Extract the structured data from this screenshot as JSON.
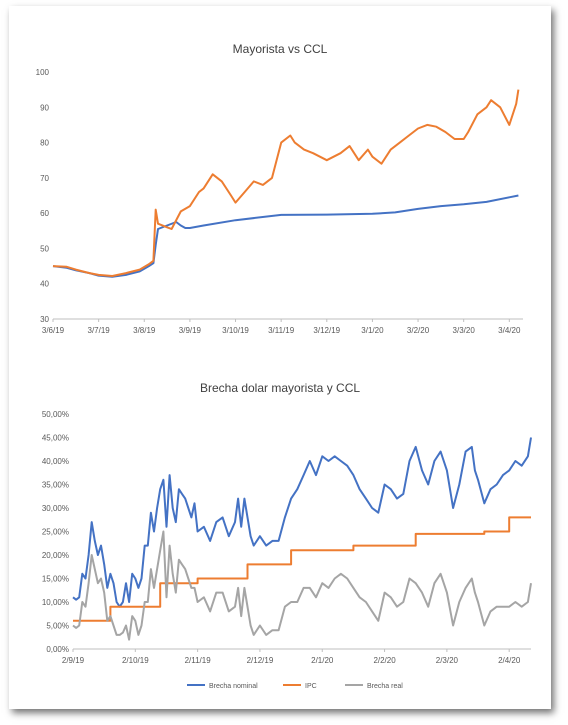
{
  "charts": {
    "top": {
      "title": "Mayorista vs CCL",
      "ytick_labels": [
        "100",
        "90",
        "80",
        "70",
        "60",
        "50",
        "40",
        "30"
      ],
      "xtick_labels": [
        "3/6/19",
        "3/7/19",
        "3/8/19",
        "3/9/19",
        "3/10/19",
        "3/11/19",
        "3/12/19",
        "3/1/20",
        "3/2/20",
        "3/3/20",
        "3/4/20"
      ]
    },
    "bottom": {
      "title": "Brecha dolar mayorista y CCL",
      "ytick_labels": [
        "50,00%",
        "45,00%",
        "40,00%",
        "35,00%",
        "30,00%",
        "25,00%",
        "20,00%",
        "15,00%",
        "10,00%",
        "5,00%",
        "0,00%"
      ],
      "xtick_labels": [
        "2/9/19",
        "2/10/19",
        "2/11/19",
        "2/12/19",
        "2/1/20",
        "2/2/20",
        "2/3/20",
        "2/4/20"
      ],
      "legend": [
        "Brecha nominal",
        "IPC",
        "Brecha real"
      ]
    }
  },
  "chart_data": [
    {
      "type": "line",
      "title": "Mayorista vs CCL",
      "xlabel": "",
      "ylabel": "",
      "ylim": [
        30,
        100
      ],
      "y_ticks": [
        30,
        40,
        50,
        60,
        70,
        80,
        90,
        100
      ],
      "x_tick_labels": [
        "3/6/19",
        "3/7/19",
        "3/8/19",
        "3/9/19",
        "3/10/19",
        "3/11/19",
        "3/12/19",
        "3/1/20",
        "3/2/20",
        "3/3/20",
        "3/4/20"
      ],
      "x_range_months": [
        0,
        10.3
      ],
      "grid": false,
      "series": [
        {
          "color": "#4472c4",
          "x": [
            0,
            0.3,
            0.5,
            0.8,
            1.0,
            1.3,
            1.6,
            1.9,
            2.1,
            2.2,
            2.25,
            2.3,
            2.5,
            2.7,
            2.8,
            2.9,
            3.0,
            3.3,
            4.0,
            5.0,
            6.0,
            7.0,
            7.5,
            8.0,
            8.5,
            9.0,
            9.5,
            10.0,
            10.2
          ],
          "values": [
            45,
            44.5,
            43.8,
            43,
            42.3,
            42,
            42.5,
            43.5,
            45,
            45.8,
            51,
            55.5,
            56.5,
            57.5,
            56.5,
            55.8,
            55.8,
            56.5,
            58,
            59.5,
            59.6,
            59.8,
            60.2,
            61.2,
            62,
            62.5,
            63.2,
            64.5,
            65
          ]
        },
        {
          "color": "#ed7d31",
          "x": [
            0,
            0.3,
            0.5,
            0.8,
            1.0,
            1.3,
            1.6,
            1.9,
            2.1,
            2.2,
            2.25,
            2.3,
            2.5,
            2.6,
            2.8,
            3.0,
            3.2,
            3.3,
            3.5,
            3.7,
            3.9,
            4.0,
            4.2,
            4.4,
            4.6,
            4.8,
            5.0,
            5.2,
            5.3,
            5.5,
            5.7,
            6.0,
            6.3,
            6.5,
            6.7,
            6.9,
            7.0,
            7.2,
            7.4,
            7.6,
            7.8,
            8.0,
            8.2,
            8.4,
            8.6,
            8.8,
            9.0,
            9.1,
            9.3,
            9.5,
            9.6,
            9.8,
            10.0,
            10.15,
            10.2
          ],
          "values": [
            45,
            44.8,
            44,
            43,
            42.5,
            42.2,
            43,
            44,
            45.5,
            46.5,
            61,
            57,
            56,
            55.5,
            60.5,
            62,
            66,
            67,
            71,
            69,
            65,
            63,
            66,
            69,
            68,
            70,
            80,
            82,
            80,
            78,
            77,
            75,
            77,
            79,
            75,
            78,
            76,
            74,
            78,
            80,
            82,
            84,
            85,
            84.5,
            83,
            81,
            81,
            83,
            88,
            90,
            92,
            90,
            85,
            91,
            95
          ]
        }
      ]
    },
    {
      "type": "line",
      "title": "Brecha dolar mayorista y CCL",
      "xlabel": "",
      "ylabel": "",
      "ylim": [
        0,
        50
      ],
      "y_ticks": [
        0,
        5,
        10,
        15,
        20,
        25,
        30,
        35,
        40,
        45,
        50
      ],
      "x_tick_labels": [
        "2/9/19",
        "2/10/19",
        "2/11/19",
        "2/12/19",
        "2/1/20",
        "2/2/20",
        "2/3/20",
        "2/4/20"
      ],
      "x_range_months": [
        0,
        7.35
      ],
      "grid": false,
      "legend_position": "bottom",
      "series": [
        {
          "name": "Brecha nominal",
          "color": "#4472c4",
          "x": [
            0,
            0.05,
            0.1,
            0.15,
            0.2,
            0.25,
            0.3,
            0.35,
            0.4,
            0.45,
            0.5,
            0.55,
            0.6,
            0.65,
            0.7,
            0.75,
            0.8,
            0.85,
            0.9,
            0.95,
            1.0,
            1.05,
            1.1,
            1.15,
            1.2,
            1.25,
            1.3,
            1.35,
            1.4,
            1.45,
            1.5,
            1.55,
            1.6,
            1.65,
            1.7,
            1.75,
            1.8,
            1.85,
            1.9,
            1.95,
            2.0,
            2.1,
            2.2,
            2.3,
            2.4,
            2.5,
            2.6,
            2.65,
            2.7,
            2.75,
            2.8,
            2.85,
            2.9,
            3.0,
            3.1,
            3.2,
            3.3,
            3.4,
            3.5,
            3.6,
            3.7,
            3.8,
            3.9,
            4.0,
            4.1,
            4.2,
            4.3,
            4.4,
            4.5,
            4.6,
            4.7,
            4.8,
            4.9,
            5.0,
            5.1,
            5.2,
            5.3,
            5.4,
            5.5,
            5.6,
            5.7,
            5.8,
            5.9,
            6.0,
            6.1,
            6.2,
            6.3,
            6.4,
            6.45,
            6.5,
            6.6,
            6.7,
            6.8,
            6.9,
            7.0,
            7.1,
            7.2,
            7.3,
            7.35
          ],
          "values": [
            11,
            10.5,
            11,
            16,
            15,
            20,
            27,
            23,
            20,
            22,
            18,
            13,
            16,
            14,
            10,
            9,
            10,
            14,
            10,
            16,
            15,
            13,
            15,
            22,
            22,
            29,
            25,
            30,
            34,
            36,
            26,
            37,
            30,
            27,
            34,
            33,
            32,
            30,
            28,
            31,
            25,
            26,
            23,
            27,
            28,
            24,
            27,
            32,
            26,
            32,
            28,
            24,
            22,
            24,
            22,
            23,
            23,
            28,
            32,
            34,
            37,
            40,
            37,
            41,
            40,
            41,
            40,
            39,
            37,
            34,
            32,
            30,
            29,
            35,
            34,
            32,
            33,
            40,
            43,
            38,
            35,
            40,
            42,
            38,
            30,
            35,
            42,
            43,
            38,
            36,
            31,
            34,
            35,
            37,
            38,
            40,
            39,
            41,
            45
          ]
        },
        {
          "name": "IPC",
          "color": "#ed7d31",
          "x": [
            0,
            0.6,
            0.6,
            1.4,
            1.4,
            2.0,
            2.0,
            2.8,
            2.8,
            3.5,
            3.5,
            4.5,
            4.5,
            5.5,
            5.5,
            6.6,
            6.6,
            7.0,
            7.0,
            7.35
          ],
          "values": [
            6,
            6,
            9,
            9,
            14,
            14,
            15,
            15,
            18,
            18,
            21,
            21,
            22,
            22,
            24.5,
            24.5,
            25,
            25,
            28,
            28
          ]
        },
        {
          "name": "Brecha real",
          "color": "#a5a5a5",
          "x": [
            0,
            0.05,
            0.1,
            0.15,
            0.2,
            0.25,
            0.3,
            0.35,
            0.4,
            0.45,
            0.5,
            0.55,
            0.6,
            0.65,
            0.7,
            0.75,
            0.8,
            0.85,
            0.9,
            0.95,
            1.0,
            1.05,
            1.1,
            1.15,
            1.2,
            1.25,
            1.3,
            1.35,
            1.4,
            1.45,
            1.5,
            1.55,
            1.6,
            1.65,
            1.7,
            1.75,
            1.8,
            1.85,
            1.9,
            1.95,
            2.0,
            2.1,
            2.2,
            2.3,
            2.4,
            2.5,
            2.6,
            2.65,
            2.7,
            2.75,
            2.8,
            2.85,
            2.9,
            3.0,
            3.1,
            3.2,
            3.3,
            3.4,
            3.5,
            3.6,
            3.7,
            3.8,
            3.9,
            4.0,
            4.1,
            4.2,
            4.3,
            4.4,
            4.5,
            4.6,
            4.7,
            4.8,
            4.9,
            5.0,
            5.1,
            5.2,
            5.3,
            5.4,
            5.5,
            5.6,
            5.7,
            5.8,
            5.9,
            6.0,
            6.1,
            6.2,
            6.3,
            6.4,
            6.45,
            6.5,
            6.6,
            6.7,
            6.8,
            6.9,
            7.0,
            7.1,
            7.2,
            7.3,
            7.35
          ],
          "values": [
            5,
            4.5,
            5,
            10,
            9,
            14,
            20,
            17,
            14,
            15,
            12,
            6,
            7,
            5,
            3,
            3,
            3.5,
            5,
            2,
            7,
            6,
            3,
            5,
            10,
            10,
            17,
            13,
            17,
            21,
            25,
            11,
            22,
            16,
            12,
            19,
            18,
            17,
            15,
            13,
            13,
            10,
            11,
            8,
            12,
            12,
            8,
            9,
            13,
            7,
            13,
            9,
            5,
            3,
            5,
            3,
            4,
            4,
            9,
            10,
            10,
            13,
            13,
            11,
            14,
            13,
            15,
            16,
            15,
            13,
            11,
            10,
            8,
            6,
            12,
            11,
            9,
            10,
            15,
            14,
            12,
            9,
            14,
            16,
            12,
            5,
            10,
            13,
            15,
            12,
            10,
            5,
            8,
            9,
            9,
            9,
            10,
            9,
            10,
            14
          ]
        }
      ]
    }
  ]
}
